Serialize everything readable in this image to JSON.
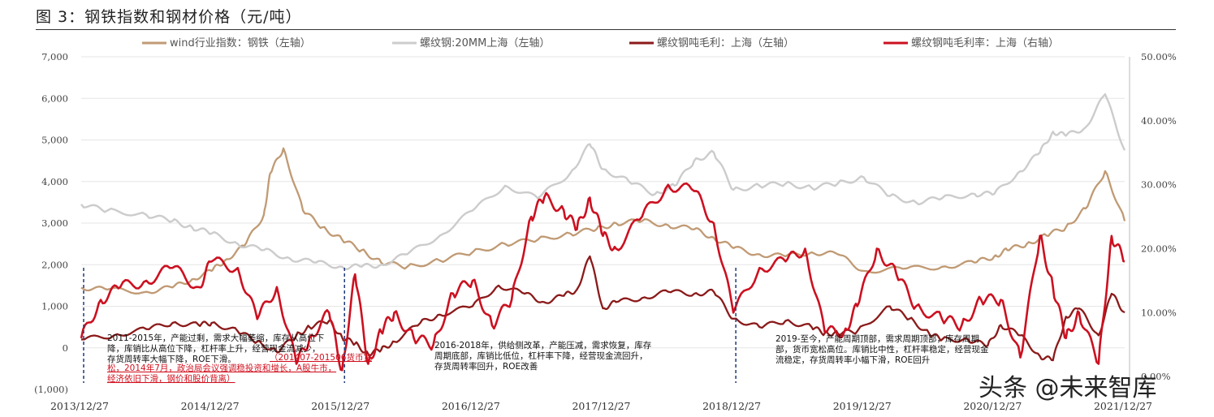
{
  "figure_title": "图 3：钢铁指数和钢材价格（元/吨）",
  "watermark": "头条 @未来智库",
  "chart_data": {
    "type": "line",
    "title": "图 3：钢铁指数和钢材价格（元/吨）",
    "x_ticks": [
      "2013/12/27",
      "2014/12/27",
      "2015/12/27",
      "2016/12/27",
      "2017/12/27",
      "2018/12/27",
      "2019/12/27",
      "2020/12/27",
      "2021/12/27"
    ],
    "left_axis": {
      "ylim": [
        -1000,
        7000
      ],
      "ticks": [
        "(1,000)",
        "0",
        "1,000",
        "2,000",
        "3,000",
        "4,000",
        "5,000",
        "6,000",
        "7,000"
      ]
    },
    "right_axis": {
      "ylim": [
        -2,
        50
      ],
      "ticks": [
        "0.00%",
        "10.00%",
        "20.00%",
        "30.00%",
        "40.00%",
        "50.00%"
      ]
    },
    "legend_placement": "top",
    "series": [
      {
        "name": "wind行业指数：钢铁（左轴）",
        "axis": "left",
        "color": "#c09a74",
        "x": [
          2014.0,
          2014.2,
          2014.5,
          2014.7,
          2014.85,
          2015.0,
          2015.1,
          2015.25,
          2015.4,
          2015.45,
          2015.55,
          2015.7,
          2015.85,
          2016.0,
          2016.15,
          2016.3,
          2016.5,
          2016.75,
          2017.0,
          2017.25,
          2017.5,
          2017.75,
          2017.95,
          2018.1,
          2018.3,
          2018.5,
          2018.7,
          2018.85,
          2019.0,
          2019.2,
          2019.4,
          2019.6,
          2019.8,
          2020.0,
          2020.3,
          2020.6,
          2020.85,
          2021.0,
          2021.1,
          2021.25,
          2021.4,
          2021.55,
          2021.7,
          2021.85,
          2022.0
        ],
        "values": [
          1450,
          1400,
          1350,
          1450,
          1650,
          1850,
          2100,
          2450,
          3200,
          4200,
          4800,
          3300,
          2900,
          2600,
          2350,
          2050,
          1950,
          2100,
          2300,
          2500,
          2600,
          2750,
          2850,
          3000,
          3050,
          2950,
          2850,
          2650,
          2400,
          2250,
          2200,
          2300,
          2250,
          1850,
          1900,
          1950,
          2050,
          2200,
          2350,
          2500,
          2700,
          2900,
          3350,
          4250,
          3050
        ]
      },
      {
        "name": "螺纹钢:20MM上海（左轴）",
        "axis": "left",
        "color": "#cccccc",
        "x": [
          2014.0,
          2014.2,
          2014.5,
          2014.7,
          2014.85,
          2015.0,
          2015.2,
          2015.4,
          2015.6,
          2015.8,
          2016.0,
          2016.15,
          2016.3,
          2016.5,
          2016.75,
          2017.0,
          2017.25,
          2017.5,
          2017.75,
          2017.9,
          2018.0,
          2018.2,
          2018.4,
          2018.55,
          2018.7,
          2018.85,
          2019.0,
          2019.2,
          2019.4,
          2019.6,
          2019.8,
          2020.0,
          2020.2,
          2020.4,
          2020.6,
          2020.85,
          2021.0,
          2021.2,
          2021.35,
          2021.45,
          2021.55,
          2021.7,
          2021.85,
          2022.0
        ],
        "values": [
          3450,
          3300,
          3200,
          3050,
          2900,
          2750,
          2500,
          2350,
          2150,
          2050,
          1950,
          1950,
          2000,
          2250,
          2700,
          3300,
          3900,
          3600,
          4200,
          4900,
          4300,
          4000,
          3700,
          3900,
          4500,
          4700,
          3800,
          3900,
          3950,
          3850,
          3950,
          4100,
          3650,
          3500,
          3600,
          3700,
          3700,
          4250,
          4700,
          5200,
          5100,
          5300,
          6100,
          4750
        ]
      },
      {
        "name": "螺纹钢吨毛利：上海（左轴）",
        "axis": "left",
        "color": "#8b1a1a",
        "x": [
          2014.0,
          2014.25,
          2014.5,
          2014.7,
          2014.9,
          2015.0,
          2015.2,
          2015.35,
          2015.5,
          2015.65,
          2015.75,
          2015.9,
          2016.0,
          2016.1,
          2016.2,
          2016.3,
          2016.4,
          2016.6,
          2016.75,
          2017.0,
          2017.2,
          2017.4,
          2017.55,
          2017.7,
          2017.8,
          2017.9,
          2018.0,
          2018.1,
          2018.3,
          2018.5,
          2018.7,
          2018.85,
          2019.0,
          2019.2,
          2019.4,
          2019.6,
          2019.7,
          2019.8,
          2019.95,
          2020.2,
          2020.35,
          2020.5,
          2020.6,
          2020.8,
          2020.95,
          2021.05,
          2021.2,
          2021.35,
          2021.45,
          2021.55,
          2021.65,
          2021.8,
          2021.9,
          2022.0
        ],
        "values": [
          200,
          300,
          450,
          600,
          550,
          600,
          400,
          150,
          -100,
          300,
          500,
          650,
          250,
          100,
          -150,
          -50,
          150,
          600,
          800,
          1000,
          1500,
          1300,
          1100,
          1250,
          1400,
          2200,
          950,
          1100,
          1200,
          1350,
          1300,
          1350,
          700,
          500,
          650,
          500,
          350,
          350,
          400,
          1000,
          700,
          350,
          200,
          200,
          50,
          550,
          300,
          -200,
          -300,
          750,
          950,
          300,
          1300,
          850
        ]
      },
      {
        "name": "螺纹钢吨毛利率：上海（右轴）",
        "axis": "right",
        "color": "#cc1020",
        "x": [
          2014.0,
          2014.15,
          2014.3,
          2014.5,
          2014.7,
          2014.9,
          2015.0,
          2015.2,
          2015.35,
          2015.5,
          2015.65,
          2015.75,
          2015.9,
          2016.0,
          2016.1,
          2016.2,
          2016.3,
          2016.4,
          2016.55,
          2016.7,
          2016.85,
          2017.0,
          2017.15,
          2017.3,
          2017.45,
          2017.55,
          2017.7,
          2017.8,
          2017.9,
          2018.0,
          2018.1,
          2018.3,
          2018.5,
          2018.7,
          2018.85,
          2019.0,
          2019.2,
          2019.4,
          2019.55,
          2019.7,
          2019.85,
          2019.95,
          2020.1,
          2020.25,
          2020.4,
          2020.6,
          2020.75,
          2020.9,
          2021.05,
          2021.2,
          2021.35,
          2021.45,
          2021.55,
          2021.65,
          2021.8,
          2021.9,
          2022.0
        ],
        "values": [
          6,
          12,
          14,
          15,
          17,
          14,
          18,
          17,
          9,
          14,
          2,
          6,
          10,
          1,
          16,
          2,
          7,
          10,
          6,
          5,
          13,
          15,
          8,
          12,
          25,
          28,
          26,
          23,
          28,
          22,
          20,
          25,
          30,
          29,
          24,
          10,
          17,
          18,
          20,
          7,
          7,
          11,
          20,
          16,
          11,
          9,
          8,
          12,
          12,
          3,
          22,
          14,
          6,
          10,
          2,
          22,
          18
        ]
      }
    ],
    "vertical_markers": [
      "2014/1",
      "2016/1",
      "2019/1"
    ],
    "annotations": [
      {
        "lines": [
          "2011-2015年，产能过剩，需求大幅萎缩，库存从高位下",
          "降，库销比从高位下降，杠杆率上升，经营现金流减少，",
          "存货周转率大幅下降，ROE下滑。"
        ]
      },
      {
        "red": true,
        "lines": [
          "（201407-201506货币宽",
          "松，2014年7月，政治局会议强调稳投资和增长，A股牛市，",
          "经济依旧下滑，钢价和股价背离）"
        ]
      },
      {
        "lines": [
          "2016-2018年，供给侧改革，产能压减，需求恢复，库存",
          "周期底部，库销比低位，杠杆率下降，经营现金流回升，",
          "存货周转率回升，ROE改善"
        ]
      },
      {
        "lines": [
          "2019-至今，产能周期顶部，需求周期顶部，库存周期",
          "部，货币宽松高位。库销比中性，杠杆率稳定，经营现金",
          "流稳定，存货周转率小幅下滑，ROE回升"
        ]
      }
    ]
  }
}
